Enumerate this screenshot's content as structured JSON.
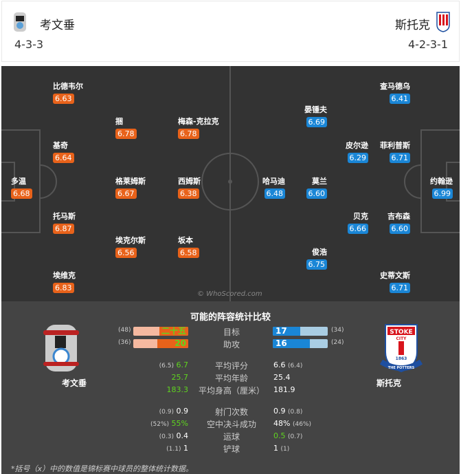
{
  "home": {
    "name": "考文垂",
    "formation": "4-3-3",
    "color": "#e8621a",
    "players": [
      {
        "name": "比德韦尔",
        "rating": "6.63"
      },
      {
        "name": "捆",
        "rating": "6.78"
      },
      {
        "name": "梅森-克拉克",
        "rating": "6.78"
      },
      {
        "name": "基奇",
        "rating": "6.64"
      },
      {
        "name": "多温",
        "rating": "6.68"
      },
      {
        "name": "格莱姆斯",
        "rating": "6.67"
      },
      {
        "name": "西姆斯",
        "rating": "6.38"
      },
      {
        "name": "托马斯",
        "rating": "6.87"
      },
      {
        "name": "埃克尔斯",
        "rating": "6.56"
      },
      {
        "name": "坂本",
        "rating": "6.58"
      },
      {
        "name": "埃维克",
        "rating": "6.83"
      }
    ]
  },
  "away": {
    "name": "斯托克",
    "formation": "4-2-3-1",
    "color": "#1a86d6",
    "crest_text": [
      "STOKE",
      "CITY",
      "1863",
      "THE POTTERS"
    ],
    "players": [
      {
        "name": "查马德乌",
        "rating": "6.41"
      },
      {
        "name": "晏锺夫",
        "rating": "6.69"
      },
      {
        "name": "皮尔逊",
        "rating": "6.29"
      },
      {
        "name": "菲利普斯",
        "rating": "6.71"
      },
      {
        "name": "哈马迪",
        "rating": "6.48"
      },
      {
        "name": "莫兰",
        "rating": "6.60"
      },
      {
        "name": "约翰逊",
        "rating": "6.99"
      },
      {
        "name": "贝克",
        "rating": "6.66"
      },
      {
        "name": "吉布森",
        "rating": "6.60"
      },
      {
        "name": "俊浩",
        "rating": "6.75"
      },
      {
        "name": "史蒂文斯",
        "rating": "6.71"
      }
    ]
  },
  "watermark": "© WhoScored.com",
  "stats": {
    "title": "可能的阵容统计比较",
    "goals": {
      "label": "目标",
      "home": "二十五",
      "home_total": "(48)",
      "home_frac": 0.52,
      "away": "17",
      "away_total": "(34)",
      "away_frac": 0.5
    },
    "assists": {
      "label": "助攻",
      "home": "20",
      "home_total": "(36)",
      "home_frac": 0.56,
      "away": "16",
      "away_total": "(24)",
      "away_frac": 0.67
    },
    "rows": [
      {
        "label": "平均评分",
        "home": "6.7",
        "home_sub": "(6.5)",
        "away": "6.6",
        "away_sub": "(6.4)"
      },
      {
        "label": "平均年龄",
        "home": "25.7",
        "home_sub": "",
        "away": "25.4",
        "away_sub": ""
      },
      {
        "label": "平均身高（厘米）",
        "home": "183.3",
        "home_sub": "",
        "away": "181.9",
        "away_sub": ""
      },
      {
        "label": "射门次数",
        "home": "0.9",
        "home_sub": "(0.9)",
        "away": "0.9",
        "away_sub": "(0.8)"
      },
      {
        "label": "空中决斗成功",
        "home": "55%",
        "home_sub": "(52%)",
        "away": "48%",
        "away_sub": "(46%)"
      },
      {
        "label": "运球",
        "home": "0.4",
        "home_sub": "(0.3)",
        "away": "0.5",
        "away_sub": "(0.7)"
      },
      {
        "label": "铲球",
        "home": "1",
        "home_sub": "(1.1)",
        "away": "1",
        "away_sub": "(1)"
      }
    ],
    "footnote": "*括号（x）中的数值是锦标赛中球员的整体统计数据。"
  }
}
